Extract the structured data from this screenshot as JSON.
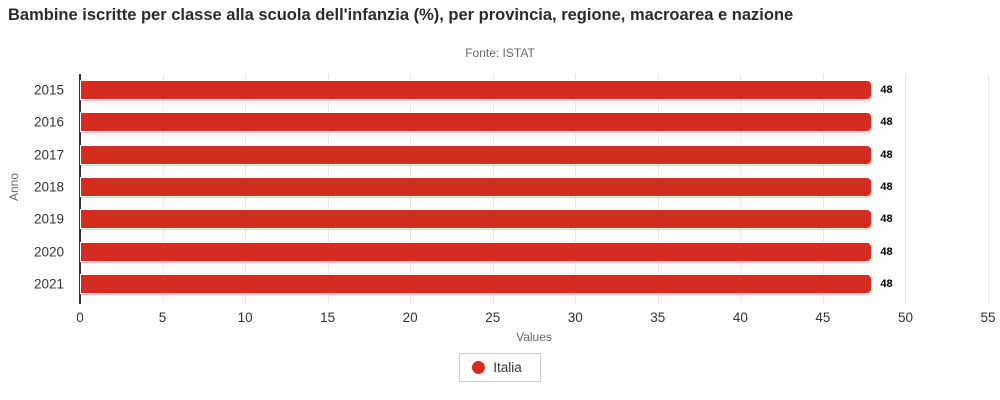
{
  "chart_data": {
    "type": "bar",
    "orientation": "horizontal",
    "title": "Bambine iscritte per classe alla scuola dell'infanzia (%), per provincia, regione, macroarea e nazione",
    "subtitle": "Fonte: ISTAT",
    "categories": [
      "2015",
      "2016",
      "2017",
      "2018",
      "2019",
      "2020",
      "2021"
    ],
    "series": [
      {
        "name": "Italia",
        "color": "#d62c20",
        "values": [
          48,
          48,
          48,
          48,
          48,
          48,
          48
        ]
      }
    ],
    "xlabel": "Values",
    "ylabel": "Anno",
    "xlim": [
      0,
      55
    ],
    "xticks": [
      0,
      5,
      10,
      15,
      20,
      25,
      30,
      35,
      40,
      45,
      50,
      55
    ],
    "grid": "vertical-only",
    "legend_position": "bottom-center",
    "data_label_for_every_bar": "48"
  },
  "colors": {
    "bar": "#d62c20",
    "grid": "#e6e6e6",
    "axis_line": "#333333",
    "title_text": "#2b2b2b",
    "subtitle_text": "#666666",
    "tick_text": "#333333",
    "axis_title_text": "#666666",
    "value_label_text": "#000000",
    "legend_border": "#cccccc",
    "background": "#ffffff"
  },
  "legend": {
    "items": [
      {
        "label": "Italia",
        "color": "#d62c20",
        "marker": "circle-icon"
      }
    ]
  }
}
